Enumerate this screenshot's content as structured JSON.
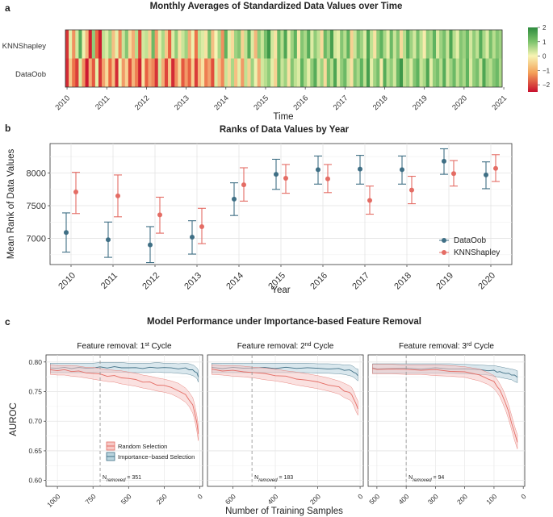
{
  "panels": [
    {
      "label": "a"
    },
    {
      "label": "b"
    },
    {
      "label": "c"
    }
  ],
  "chart_data": [
    {
      "type": "heatmap",
      "title": "Monthly Averages of Standardized Data Values over Time",
      "xlabel": "Time",
      "rows": [
        "KNNShapley",
        "DataOob"
      ],
      "x_ticks": [
        "2010",
        "2011",
        "2012",
        "2013",
        "2014",
        "2015",
        "2016",
        "2017",
        "2018",
        "2019",
        "2020",
        "2021"
      ],
      "months_start": "2010-01",
      "n_months": 132,
      "colorbar": {
        "min": -2.5,
        "max": 2,
        "ticks": [
          "2",
          "1",
          "0",
          "−1",
          "−2"
        ],
        "tick_values": [
          2,
          1,
          0,
          -1,
          -2
        ],
        "colors": {
          "low": "#c8102e",
          "mid": "#f7f4b4",
          "high": "#2e8b3e"
        }
      },
      "values": {
        "KNNShapley": [
          -2.1,
          0.2,
          -1.1,
          0.4,
          1.5,
          0.1,
          -0.7,
          -2.3,
          1.0,
          -1.5,
          -2.4,
          0.6,
          0.3,
          0.9,
          -0.6,
          0.2,
          -1.2,
          0.5,
          1.1,
          -0.3,
          -0.8,
          0.7,
          -1.9,
          0.4,
          0.6,
          -0.4,
          1.3,
          -1.0,
          0.2,
          0.8,
          -0.5,
          -1.6,
          0.3,
          1.0,
          -0.2,
          0.5,
          0.9,
          -0.8,
          0.1,
          -1.4,
          0.6,
          0.3,
          -0.2,
          1.2,
          -0.6,
          0.0,
          0.8,
          -1.1,
          1.4,
          0.2,
          -0.3,
          0.9,
          1.1,
          -0.4,
          0.6,
          1.5,
          0.3,
          -0.7,
          1.0,
          0.5,
          1.2,
          1.8,
          0.4,
          -0.2,
          1.3,
          0.7,
          1.6,
          0.2,
          0.9,
          1.4,
          -0.1,
          1.1,
          0.8,
          1.5,
          0.3,
          1.0,
          0.6,
          -0.3,
          1.3,
          0.9,
          1.7,
          0.4,
          0.2,
          1.1,
          0.7,
          1.4,
          -0.4,
          0.5,
          1.2,
          0.9,
          0.3,
          1.6,
          0.6,
          -0.2,
          1.0,
          1.4,
          0.8,
          0.2,
          1.3,
          0.5,
          1.1,
          -0.3,
          0.7,
          1.5,
          0.9,
          0.4,
          1.2,
          0.6,
          -0.1,
          1.0,
          0.8,
          1.4,
          0.3,
          0.9,
          1.2,
          0.5,
          1.6,
          0.7,
          0.2,
          1.1,
          0.9,
          1.3,
          0.4,
          1.0,
          0.6,
          1.5,
          0.8,
          0.3,
          1.2,
          0.7,
          1.1,
          0.9
        ],
        "DataOob": [
          -2.2,
          -0.5,
          -1.4,
          -2.0,
          0.3,
          -1.1,
          -2.4,
          -0.8,
          -1.7,
          0.2,
          -2.1,
          -0.9,
          -0.3,
          -1.5,
          -0.6,
          -2.2,
          0.1,
          -1.0,
          -0.4,
          -1.8,
          -0.7,
          -1.3,
          -2.3,
          -0.2,
          -1.6,
          -0.9,
          -1.2,
          -2.1,
          0.4,
          -0.8,
          -1.9,
          -0.5,
          -2.2,
          -1.1,
          -0.3,
          -1.7,
          -1.0,
          -1.6,
          -0.4,
          -2.0,
          -0.7,
          -0.2,
          -1.3,
          -0.9,
          -1.8,
          0.3,
          -0.6,
          -1.2,
          0.5,
          -0.3,
          0.8,
          -0.6,
          0.2,
          -1.0,
          0.6,
          -0.4,
          0.9,
          0.1,
          -0.8,
          0.4,
          0.7,
          1.0,
          0.2,
          -0.4,
          1.3,
          0.5,
          0.9,
          -0.2,
          1.1,
          0.6,
          0.3,
          1.4,
          0.8,
          0.2,
          1.0,
          1.5,
          0.4,
          0.9,
          -0.3,
          1.2,
          0.7,
          1.6,
          0.3,
          1.0,
          1.3,
          0.5,
          -0.2,
          1.1,
          0.8,
          1.4,
          0.6,
          1.7,
          0.2,
          0.9,
          1.2,
          -0.1,
          1.5,
          0.7,
          1.0,
          0.4,
          1.3,
          1.8,
          0.6,
          0.9,
          0.3,
          1.1,
          1.4,
          0.5,
          0.8,
          1.6,
          0.2,
          1.0,
          1.2,
          0.7,
          1.5,
          0.4,
          0.9,
          1.3,
          0.6,
          1.1,
          0.8,
          1.4,
          0.3,
          1.0,
          1.2,
          0.5,
          1.6,
          0.9,
          0.7,
          1.1,
          1.3,
          0.8
        ]
      }
    },
    {
      "type": "scatter",
      "title": "Ranks of Data Values by Year",
      "xlabel": "Year",
      "ylabel": "Mean Rank of Data Values",
      "categories": [
        "2010",
        "2011",
        "2012",
        "2013",
        "2014",
        "2015",
        "2016",
        "2017",
        "2018",
        "2019",
        "2020"
      ],
      "ylim": [
        6600,
        8450
      ],
      "y_ticks": [
        7000,
        7500,
        8000
      ],
      "legend_position": "right",
      "series": [
        {
          "name": "DataOob",
          "color": "#3f6f85",
          "values": [
            7090,
            6980,
            6900,
            7020,
            7600,
            7980,
            8050,
            8060,
            8050,
            8180,
            7970
          ],
          "lower": [
            6790,
            6710,
            6630,
            6760,
            7350,
            7750,
            7830,
            7830,
            7830,
            7980,
            7760
          ],
          "upper": [
            7390,
            7250,
            7180,
            7270,
            7850,
            8210,
            8260,
            8270,
            8260,
            8370,
            8170
          ]
        },
        {
          "name": "KNNShapley",
          "color": "#e46c64",
          "values": [
            7710,
            7650,
            7360,
            7180,
            7820,
            7920,
            7910,
            7580,
            7740,
            7990,
            8070
          ],
          "lower": [
            7380,
            7330,
            7080,
            6920,
            7570,
            7690,
            7700,
            7370,
            7530,
            7800,
            7870
          ],
          "upper": [
            8010,
            7970,
            7630,
            7460,
            8080,
            8130,
            8130,
            7800,
            7950,
            8190,
            8280
          ]
        }
      ]
    },
    {
      "type": "line",
      "title": "Model Performance under Importance-based Feature Removal",
      "xlabel": "Number of Training Samples",
      "ylabel": "AUROC",
      "ylim": [
        0.59,
        0.812
      ],
      "y_ticks": [
        "0.80",
        "0.75",
        "0.70",
        "0.65",
        "0.60"
      ],
      "y_tick_values": [
        0.8,
        0.75,
        0.7,
        0.65,
        0.6
      ],
      "legend": [
        "Random Selection",
        "Importance−based Selection"
      ],
      "series_colors": {
        "Random Selection": "#e46c64",
        "Importance−based Selection": "#3f6f85"
      },
      "facets": [
        {
          "strip": "Feature removal: 1",
          "sup": "st",
          "strip_end": " Cycle",
          "x_ticks": [
            "1000",
            "750",
            "500",
            "250",
            "0"
          ],
          "x_tick_values": [
            1000,
            750,
            500,
            250,
            0
          ],
          "xlim": [
            1080,
            -20
          ],
          "removed_x": 700,
          "removed_label": "N",
          "removed_sub": "removed",
          "removed_value": " = 351",
          "random": {
            "x": [
              1050,
              1000,
              950,
              900,
              850,
              800,
              750,
              700,
              650,
              600,
              550,
              500,
              450,
              400,
              350,
              300,
              250,
              200,
              150,
              100,
              75,
              50,
              40,
              30,
              20,
              10
            ],
            "y": [
              0.787,
              0.786,
              0.786,
              0.785,
              0.784,
              0.782,
              0.781,
              0.779,
              0.777,
              0.776,
              0.774,
              0.772,
              0.77,
              0.767,
              0.765,
              0.762,
              0.76,
              0.757,
              0.752,
              0.744,
              0.737,
              0.727,
              0.719,
              0.708,
              0.696,
              0.68
            ],
            "band": [
              0.008,
              0.008,
              0.008,
              0.009,
              0.009,
              0.009,
              0.01,
              0.01,
              0.01,
              0.01,
              0.011,
              0.011,
              0.011,
              0.011,
              0.011,
              0.011,
              0.011,
              0.011,
              0.012,
              0.012,
              0.012,
              0.013,
              0.013,
              0.013,
              0.013,
              0.013
            ]
          },
          "importance": {
            "x": [
              1050,
              1000,
              950,
              900,
              850,
              800,
              750,
              700,
              650,
              600,
              550,
              500,
              450,
              400,
              350,
              300,
              250,
              200,
              150,
              100,
              75,
              50,
              40,
              30,
              20,
              10
            ],
            "y": [
              0.79,
              0.79,
              0.79,
              0.79,
              0.79,
              0.79,
              0.79,
              0.791,
              0.791,
              0.791,
              0.791,
              0.79,
              0.79,
              0.79,
              0.79,
              0.791,
              0.79,
              0.79,
              0.789,
              0.789,
              0.788,
              0.786,
              0.785,
              0.783,
              0.781,
              0.776
            ],
            "band": [
              0.008,
              0.008,
              0.008,
              0.008,
              0.008,
              0.008,
              0.008,
              0.008,
              0.008,
              0.008,
              0.008,
              0.008,
              0.008,
              0.008,
              0.008,
              0.008,
              0.008,
              0.008,
              0.008,
              0.009,
              0.009,
              0.009,
              0.009,
              0.009,
              0.009,
              0.01
            ]
          }
        },
        {
          "strip": "Feature removal: 2",
          "sup": "nd",
          "strip_end": " Cycle",
          "x_ticks": [
            "600",
            "400",
            "200",
            "0"
          ],
          "x_tick_values": [
            600,
            400,
            200,
            0
          ],
          "xlim": [
            720,
            -15
          ],
          "removed_x": 510,
          "removed_label": "N",
          "removed_sub": "removed",
          "removed_value": " = 183",
          "random": {
            "x": [
              700,
              650,
              600,
              550,
              500,
              450,
              400,
              350,
              300,
              250,
              200,
              150,
              100,
              75,
              50,
              40,
              30,
              20,
              10
            ],
            "y": [
              0.787,
              0.786,
              0.785,
              0.784,
              0.782,
              0.78,
              0.778,
              0.775,
              0.772,
              0.769,
              0.766,
              0.762,
              0.757,
              0.752,
              0.748,
              0.745,
              0.738,
              0.729,
              0.722
            ],
            "band": [
              0.008,
              0.008,
              0.009,
              0.009,
              0.009,
              0.01,
              0.01,
              0.01,
              0.011,
              0.011,
              0.011,
              0.011,
              0.011,
              0.012,
              0.012,
              0.012,
              0.012,
              0.012,
              0.012
            ]
          },
          "importance": {
            "x": [
              700,
              650,
              600,
              550,
              500,
              450,
              400,
              350,
              300,
              250,
              200,
              150,
              100,
              75,
              50,
              40,
              30,
              20,
              10
            ],
            "y": [
              0.79,
              0.79,
              0.79,
              0.79,
              0.79,
              0.79,
              0.79,
              0.79,
              0.79,
              0.79,
              0.789,
              0.789,
              0.788,
              0.787,
              0.786,
              0.785,
              0.783,
              0.78,
              0.778
            ],
            "band": [
              0.008,
              0.008,
              0.008,
              0.008,
              0.008,
              0.008,
              0.008,
              0.008,
              0.008,
              0.008,
              0.008,
              0.008,
              0.008,
              0.008,
              0.009,
              0.009,
              0.009,
              0.009,
              0.01
            ]
          }
        },
        {
          "strip": "Feature removal: 3",
          "sup": "rd",
          "strip_end": " Cycle",
          "x_ticks": [
            "500",
            "400",
            "300",
            "200",
            "100",
            "0"
          ],
          "x_tick_values": [
            500,
            400,
            300,
            200,
            100,
            0
          ],
          "xlim": [
            530,
            -5
          ],
          "removed_x": 400,
          "removed_label": "N",
          "removed_sub": "removed",
          "removed_value": " = 94",
          "random": {
            "x": [
              515,
              500,
              450,
              400,
              350,
              300,
              250,
              200,
              150,
              120,
              100,
              90,
              80,
              70,
              60,
              50,
              40,
              30,
              20
            ],
            "y": [
              0.788,
              0.788,
              0.788,
              0.787,
              0.787,
              0.786,
              0.785,
              0.783,
              0.778,
              0.772,
              0.766,
              0.76,
              0.752,
              0.742,
              0.73,
              0.715,
              0.698,
              0.68,
              0.665
            ],
            "band": [
              0.008,
              0.008,
              0.008,
              0.008,
              0.008,
              0.009,
              0.009,
              0.009,
              0.01,
              0.01,
              0.011,
              0.011,
              0.011,
              0.012,
              0.012,
              0.012,
              0.012,
              0.012,
              0.012
            ]
          },
          "importance": {
            "x": [
              515,
              500,
              450,
              400,
              350,
              300,
              250,
              200,
              150,
              120,
              100,
              90,
              80,
              70,
              60,
              50,
              40,
              30,
              20
            ],
            "y": [
              0.789,
              0.789,
              0.789,
              0.789,
              0.789,
              0.789,
              0.789,
              0.788,
              0.787,
              0.786,
              0.785,
              0.784,
              0.783,
              0.782,
              0.781,
              0.78,
              0.779,
              0.777,
              0.775
            ],
            "band": [
              0.008,
              0.008,
              0.008,
              0.008,
              0.008,
              0.008,
              0.008,
              0.008,
              0.008,
              0.008,
              0.009,
              0.009,
              0.009,
              0.009,
              0.009,
              0.009,
              0.009,
              0.01,
              0.01
            ]
          }
        }
      ]
    }
  ]
}
